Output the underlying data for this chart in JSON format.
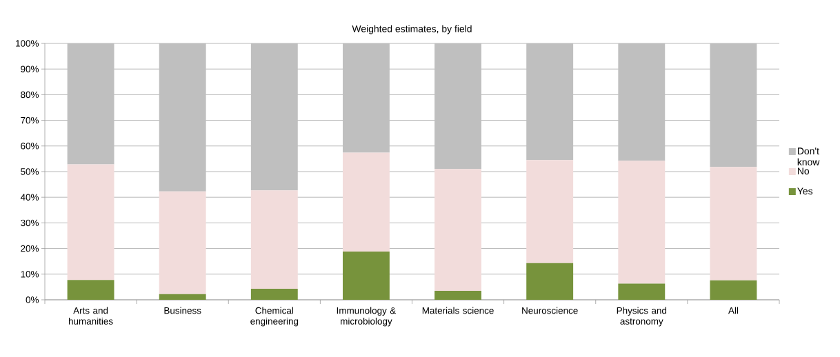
{
  "chart_data": {
    "type": "bar",
    "stacked": true,
    "title": "Weighted estimates, by field",
    "categories": [
      "Arts and humanities",
      "Business",
      "Chemical engineering",
      "Immunology & microbiology",
      "Materials science",
      "Neuroscience",
      "Physics and astronomy",
      "All"
    ],
    "series": [
      {
        "name": "Yes",
        "color": "#77933c",
        "values": [
          7.7,
          2.2,
          4.3,
          18.8,
          3.5,
          14.3,
          6.3,
          7.6
        ]
      },
      {
        "name": "No",
        "color": "#f2dcdb",
        "values": [
          45.1,
          40.1,
          38.4,
          38.6,
          47.5,
          40.2,
          47.9,
          44.2
        ]
      },
      {
        "name": "Don't know",
        "color": "#bfbfbf",
        "values": [
          47.2,
          57.7,
          57.3,
          42.6,
          49.0,
          45.5,
          45.8,
          48.2
        ]
      }
    ],
    "ylim": [
      0,
      100
    ],
    "yticks": [
      {
        "value": 0,
        "label": "0%"
      },
      {
        "value": 10,
        "label": "10%"
      },
      {
        "value": 20,
        "label": "20%"
      },
      {
        "value": 30,
        "label": "30%"
      },
      {
        "value": 40,
        "label": "40%"
      },
      {
        "value": 50,
        "label": "50%"
      },
      {
        "value": 60,
        "label": "60%"
      },
      {
        "value": 70,
        "label": "70%"
      },
      {
        "value": 80,
        "label": "80%"
      },
      {
        "value": 90,
        "label": "90%"
      },
      {
        "value": 100,
        "label": "100%"
      }
    ],
    "grid": "y",
    "legend": "right"
  }
}
